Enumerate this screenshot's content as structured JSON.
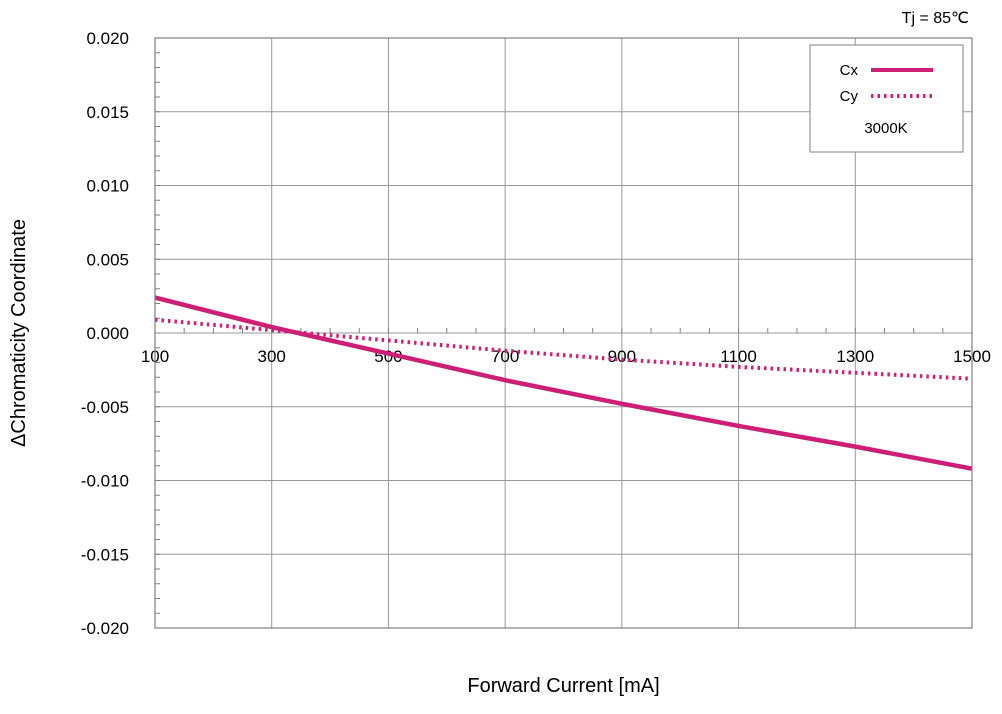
{
  "chart_data": {
    "type": "line",
    "title": "",
    "xlabel": "Forward Current [mA]",
    "ylabel": "ΔChromaticity Coordinate",
    "xlim": [
      100,
      1500
    ],
    "ylim": [
      -0.02,
      0.02
    ],
    "x_tick_labels": [
      "100",
      "300",
      "500",
      "700",
      "900",
      "1100",
      "1300",
      "1500"
    ],
    "y_tick_labels": [
      "0.020",
      "0.015",
      "0.010",
      "0.005",
      "0.000",
      "-0.005",
      "-0.010",
      "-0.015",
      "-0.020"
    ],
    "y_tick_values": [
      0.02,
      0.015,
      0.01,
      0.005,
      0.0,
      -0.005,
      -0.01,
      -0.015,
      -0.02
    ],
    "grid": true,
    "legend_position": "top-right",
    "condition_note": "Tj = 85℃",
    "legend_note": "3000K",
    "colors": {
      "series": "#cc1f75",
      "grid": "#999999",
      "axis": "#808080"
    },
    "series": [
      {
        "name": "Cx",
        "style": "solid",
        "x": [
          100,
          300,
          500,
          700,
          900,
          1100,
          1300,
          1500
        ],
        "y": [
          0.0024,
          0.0004,
          -0.0014,
          -0.0032,
          -0.0048,
          -0.0063,
          -0.0077,
          -0.0092
        ]
      },
      {
        "name": "Cy",
        "style": "dotted",
        "x": [
          100,
          300,
          500,
          700,
          900,
          1100,
          1300,
          1500
        ],
        "y": [
          0.0009,
          0.0002,
          -0.0005,
          -0.0012,
          -0.0018,
          -0.0023,
          -0.0027,
          -0.0031
        ]
      }
    ]
  }
}
